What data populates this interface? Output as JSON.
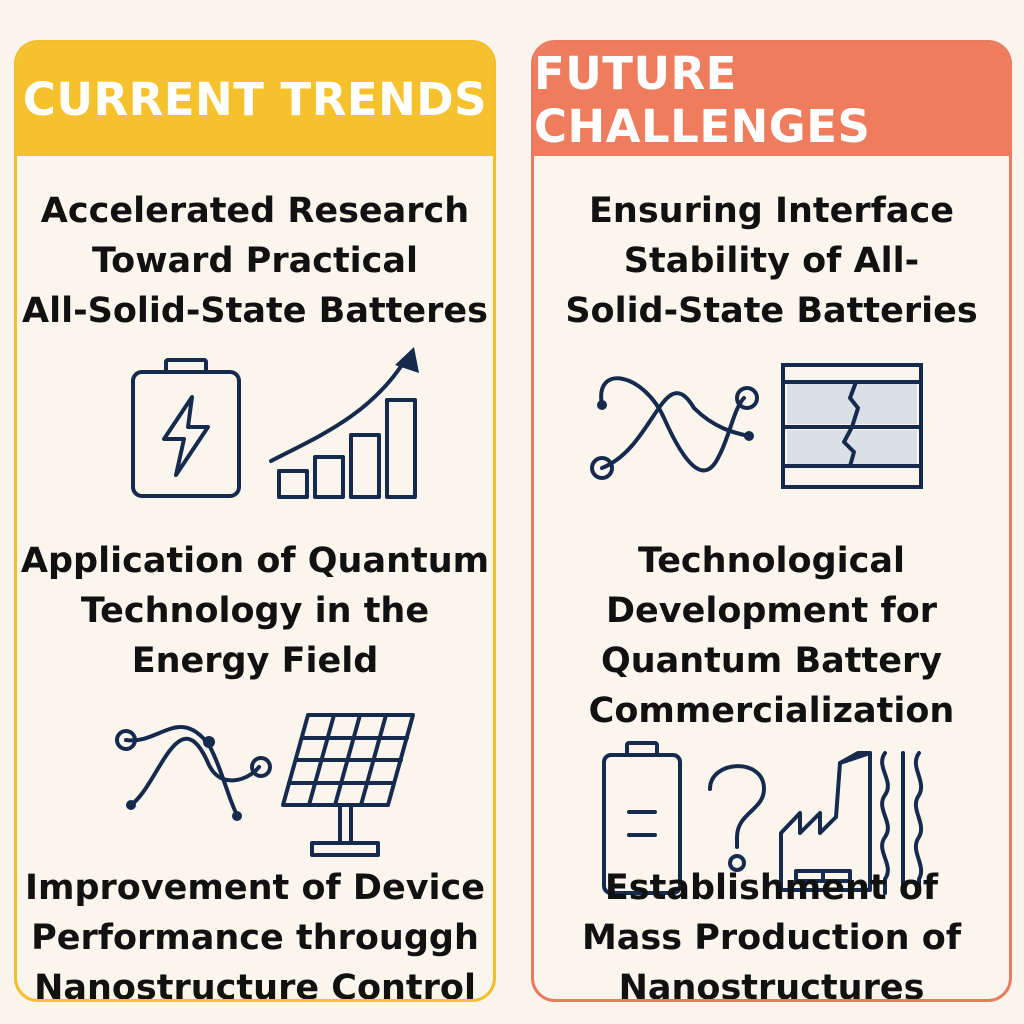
{
  "left_panel": {
    "title": "CURRENT TRENDS",
    "items": [
      {
        "text": "Accelerated Research\nToward Practical\nAll-Solid-State Batteres"
      },
      {
        "text": "Application of Quantum\nTechnology in the\nEnergy Field"
      },
      {
        "text": "Improvement of Device\nPerformance througgh\nNanostructure Control"
      }
    ],
    "icons": [
      "battery-bolt-icon",
      "growth-chart-icon",
      "quantum-wave-icon",
      "solar-panel-icon"
    ]
  },
  "right_panel": {
    "title": "FUTURE CHALLENGES",
    "items": [
      {
        "text": "Ensuring Interface\nStability of All-\nSolid-State Batteries"
      },
      {
        "text": "Technological\nDevelopment for\nQuantum Battery\nCommercialization"
      },
      {
        "text": "Establishment of\nMass Production of\nNanostructures"
      }
    ],
    "icons": [
      "quantum-wave-icon",
      "cracked-layers-icon",
      "battery-icon",
      "question-mark-icon",
      "factory-icon",
      "wavy-lines-icon"
    ]
  },
  "colors": {
    "trends_accent": "#f5c22e",
    "challenges_accent": "#ee7c5d",
    "icon_stroke": "#162a4e",
    "background": "#faf5ec"
  }
}
